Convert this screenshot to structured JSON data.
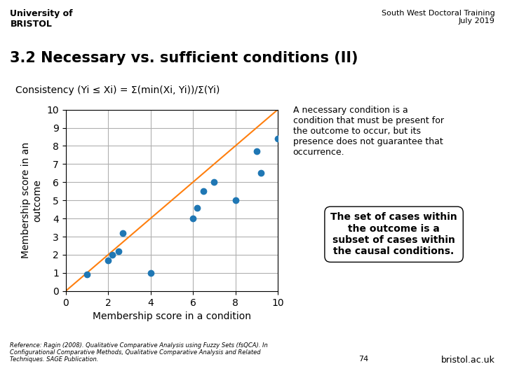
{
  "chart_data": {
    "type": "scatter",
    "title": "3.2 Necessary vs. sufficient conditions (II)",
    "x_label": "Membership score in a condition",
    "y_label": "Membership score in an\noutcome",
    "series": [
      {
        "type": "scatter",
        "x": [
          1.0,
          2.0,
          2.2,
          2.5,
          2.7,
          4.0,
          6.0,
          6.2,
          6.5,
          7.0,
          8.0,
          9.0,
          9.2,
          10.0
        ],
        "values": [
          0.9,
          1.7,
          2.0,
          2.2,
          3.2,
          1.0,
          4.0,
          4.6,
          5.5,
          6.0,
          5.0,
          7.7,
          6.5,
          8.4
        ]
      },
      {
        "type": "line",
        "x": [
          0,
          10
        ],
        "values": [
          0,
          10
        ]
      }
    ],
    "xlim": [
      0,
      10
    ],
    "ylim": [
      0,
      10
    ],
    "xticks": [
      0,
      2,
      4,
      6,
      8,
      10
    ],
    "yticks": [
      0,
      1,
      2,
      3,
      4,
      5,
      6,
      7,
      8,
      9,
      10
    ],
    "grid": true,
    "annotations": [
      "University of\nBRISTOL",
      "South West Doctoral Training\nJuly 2019",
      "Consistency (Yi ≤ Xi) = Σ(min(Xi, Yi))/Σ(Yi)",
      "A necessary condition is a\ncondition that must be present for\nthe outcome to occur, but its\npresence does not guarantee that\noccurrence.",
      "The set of cases within\nthe outcome is a\nsubset of cases within\nthe causal conditions.",
      "Reference: Ragin (2008). Qualitative Comparative Analysis using Fuzzy Sets (fsQCA). In\nConfigurational Comparative Methods, Qualitative Comparative Analysis and Related\nTechniques. SAGE Publication.",
      "74",
      "bristol.ac.uk"
    ]
  }
}
